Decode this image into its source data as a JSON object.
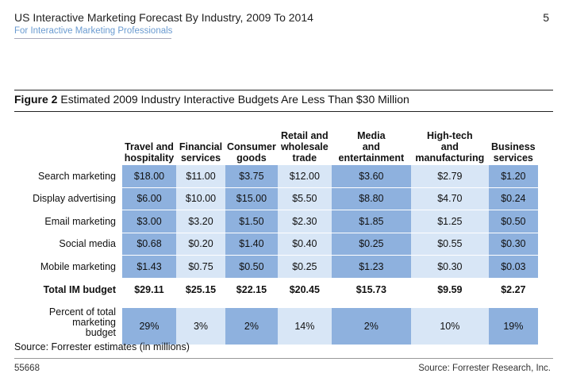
{
  "header": {
    "title": "US Interactive Marketing Forecast By Industry, 2009 To 2014",
    "page_number": "5",
    "subtitle": "For Interactive Marketing Professionals"
  },
  "figure": {
    "label": "Figure 2",
    "title": "Estimated 2009 Industry Interactive Budgets Are Less Than $30 Million"
  },
  "chart_data": {
    "type": "table",
    "columns": [
      {
        "line1": "",
        "line2": "Travel and",
        "line3": "hospitality"
      },
      {
        "line1": "",
        "line2": "Financial",
        "line3": "services"
      },
      {
        "line1": "",
        "line2": "Consumer",
        "line3": "goods"
      },
      {
        "line1": "Retail and",
        "line2": "wholesale",
        "line3": "trade"
      },
      {
        "line1": "Media",
        "line2": "and",
        "line3": "entertainment"
      },
      {
        "line1": "High-tech",
        "line2": "and",
        "line3": "manufacturing"
      },
      {
        "line1": "",
        "line2": "Business",
        "line3": "services"
      }
    ],
    "rows": [
      {
        "label": "Search marketing",
        "values": [
          "$18.00",
          "$11.00",
          "$3.75",
          "$12.00",
          "$3.60",
          "$2.79",
          "$1.20"
        ]
      },
      {
        "label": "Display advertising",
        "values": [
          "$6.00",
          "$10.00",
          "$15.00",
          "$5.50",
          "$8.80",
          "$4.70",
          "$0.24"
        ]
      },
      {
        "label": "Email marketing",
        "values": [
          "$3.00",
          "$3.20",
          "$1.50",
          "$2.30",
          "$1.85",
          "$1.25",
          "$0.50"
        ]
      },
      {
        "label": "Social media",
        "values": [
          "$0.68",
          "$0.20",
          "$1.40",
          "$0.40",
          "$0.25",
          "$0.55",
          "$0.30"
        ]
      },
      {
        "label": "Mobile marketing",
        "values": [
          "$1.43",
          "$0.75",
          "$0.50",
          "$0.25",
          "$1.23",
          "$0.30",
          "$0.03"
        ]
      }
    ],
    "total": {
      "label": "Total IM budget",
      "values": [
        "$29.11",
        "$25.15",
        "$22.15",
        "$20.45",
        "$15.73",
        "$9.59",
        "$2.27"
      ]
    },
    "percent": {
      "label_line1": "Percent of total",
      "label_line2": "marketing",
      "label_line3": "budget",
      "values": [
        "29%",
        "3%",
        "2%",
        "14%",
        "2%",
        "10%",
        "19%"
      ]
    }
  },
  "source_note": "Source: Forrester estimates (in millions)",
  "footer": {
    "doc_id": "55668",
    "source": "Source: Forrester Research, Inc."
  },
  "colors": {
    "dark_cell": "#8eb1de",
    "light_cell": "#d8e6f6",
    "subtitle": "#6a9bd1"
  }
}
